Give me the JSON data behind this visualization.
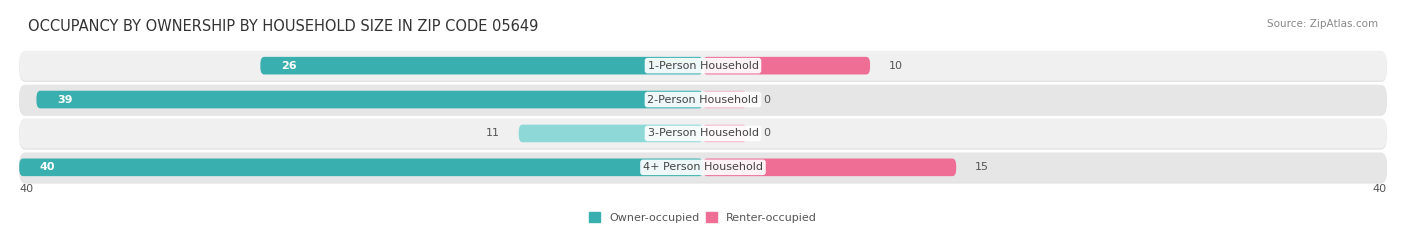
{
  "title": "OCCUPANCY BY OWNERSHIP BY HOUSEHOLD SIZE IN ZIP CODE 05649",
  "source": "Source: ZipAtlas.com",
  "categories": [
    "1-Person Household",
    "2-Person Household",
    "3-Person Household",
    "4+ Person Household"
  ],
  "owner_values": [
    26,
    39,
    11,
    40
  ],
  "renter_values": [
    10,
    0,
    0,
    15
  ],
  "owner_color_dark": "#3AAFAF",
  "owner_color_light": "#8FD8D8",
  "renter_color_dark": "#EE6E96",
  "renter_color_light": "#F5A0BC",
  "row_bg_colors": [
    "#F0F0F0",
    "#E6E6E6"
  ],
  "row_shadow_color": "#D0D0D0",
  "max_value": 40,
  "legend_owner": "Owner-occupied",
  "legend_renter": "Renter-occupied",
  "axis_label_left": "40",
  "axis_label_right": "40",
  "title_fontsize": 10.5,
  "source_fontsize": 7.5,
  "label_fontsize": 8,
  "category_fontsize": 8,
  "value_fontsize": 8
}
